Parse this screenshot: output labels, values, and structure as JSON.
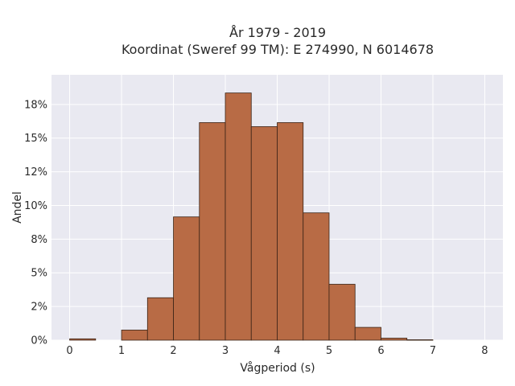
{
  "chart_data": {
    "type": "bar",
    "title_line1": "År 1979 - 2019",
    "title_line2": "Koordinat (Sweref 99 TM): E 274990, N 6014678",
    "xlabel": "Vågperiod (s)",
    "ylabel": "Andel",
    "xlim": [
      -0.35,
      8.35
    ],
    "ylim": [
      0,
      0.197
    ],
    "x_ticks": [
      0,
      1,
      2,
      3,
      4,
      5,
      6,
      7,
      8
    ],
    "y_ticks": [
      0,
      0.025,
      0.05,
      0.075,
      0.1,
      0.125,
      0.15,
      0.175
    ],
    "y_tick_labels": [
      "0%",
      "2%",
      "5%",
      "8%",
      "10%",
      "12%",
      "15%",
      "18%"
    ],
    "grid": true,
    "bar_color": "#b86b45",
    "bar_edge_color": "#3b2417",
    "plot_bg": "#e9e9f1",
    "bins": [
      {
        "start": 0.0,
        "end": 0.5,
        "value": 0.001
      },
      {
        "start": 0.5,
        "end": 1.0,
        "value": 0.0
      },
      {
        "start": 1.0,
        "end": 1.5,
        "value": 0.0075
      },
      {
        "start": 1.5,
        "end": 2.0,
        "value": 0.0315
      },
      {
        "start": 2.0,
        "end": 2.5,
        "value": 0.0915
      },
      {
        "start": 2.5,
        "end": 3.0,
        "value": 0.1615
      },
      {
        "start": 3.0,
        "end": 3.5,
        "value": 0.1835
      },
      {
        "start": 3.5,
        "end": 4.0,
        "value": 0.1585
      },
      {
        "start": 4.0,
        "end": 4.5,
        "value": 0.1615
      },
      {
        "start": 4.5,
        "end": 5.0,
        "value": 0.0945
      },
      {
        "start": 5.0,
        "end": 5.5,
        "value": 0.0415
      },
      {
        "start": 5.5,
        "end": 6.0,
        "value": 0.0095
      },
      {
        "start": 6.0,
        "end": 6.5,
        "value": 0.0015
      },
      {
        "start": 6.5,
        "end": 7.0,
        "value": 0.0003
      }
    ]
  }
}
